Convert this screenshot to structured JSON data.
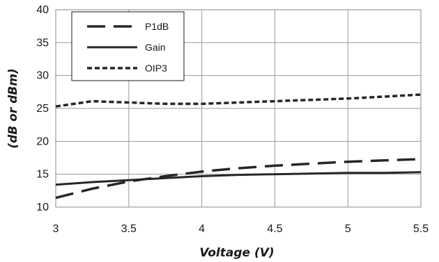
{
  "chart_data": {
    "type": "line",
    "title": "",
    "xlabel": "Voltage (V)",
    "ylabel": "(dB or dBm)",
    "xlim": [
      3,
      5.5
    ],
    "ylim": [
      10,
      40
    ],
    "xticks": [
      3,
      3.5,
      4,
      4.5,
      5,
      5.5
    ],
    "yticks": [
      10,
      15,
      20,
      25,
      30,
      35,
      40
    ],
    "xtick_labels": [
      "3",
      "3.5",
      "4",
      "4.5",
      "5",
      "5.5"
    ],
    "ytick_labels": [
      "10",
      "15",
      "20",
      "25",
      "30",
      "35",
      "40"
    ],
    "grid": true,
    "legend_position": "top-left",
    "series": [
      {
        "name": "P1dB",
        "style": "long-dash",
        "color": "#262626",
        "x": [
          3.0,
          3.25,
          3.5,
          3.75,
          4.0,
          4.25,
          4.5,
          4.75,
          5.0,
          5.25,
          5.5
        ],
        "y": [
          11.4,
          12.8,
          13.9,
          14.7,
          15.4,
          15.9,
          16.3,
          16.6,
          16.9,
          17.1,
          17.3
        ]
      },
      {
        "name": "Gain",
        "style": "solid",
        "color": "#262626",
        "x": [
          3.0,
          3.25,
          3.5,
          3.75,
          4.0,
          4.25,
          4.5,
          4.75,
          5.0,
          5.25,
          5.5
        ],
        "y": [
          13.4,
          13.8,
          14.1,
          14.4,
          14.7,
          14.9,
          15.0,
          15.1,
          15.2,
          15.2,
          15.3
        ]
      },
      {
        "name": "OIP3",
        "style": "short-dash",
        "color": "#262626",
        "x": [
          3.0,
          3.25,
          3.5,
          3.75,
          4.0,
          4.25,
          4.5,
          4.75,
          5.0,
          5.25,
          5.5
        ],
        "y": [
          25.3,
          26.1,
          25.9,
          25.7,
          25.7,
          25.9,
          26.1,
          26.3,
          26.5,
          26.8,
          27.1
        ]
      }
    ]
  }
}
